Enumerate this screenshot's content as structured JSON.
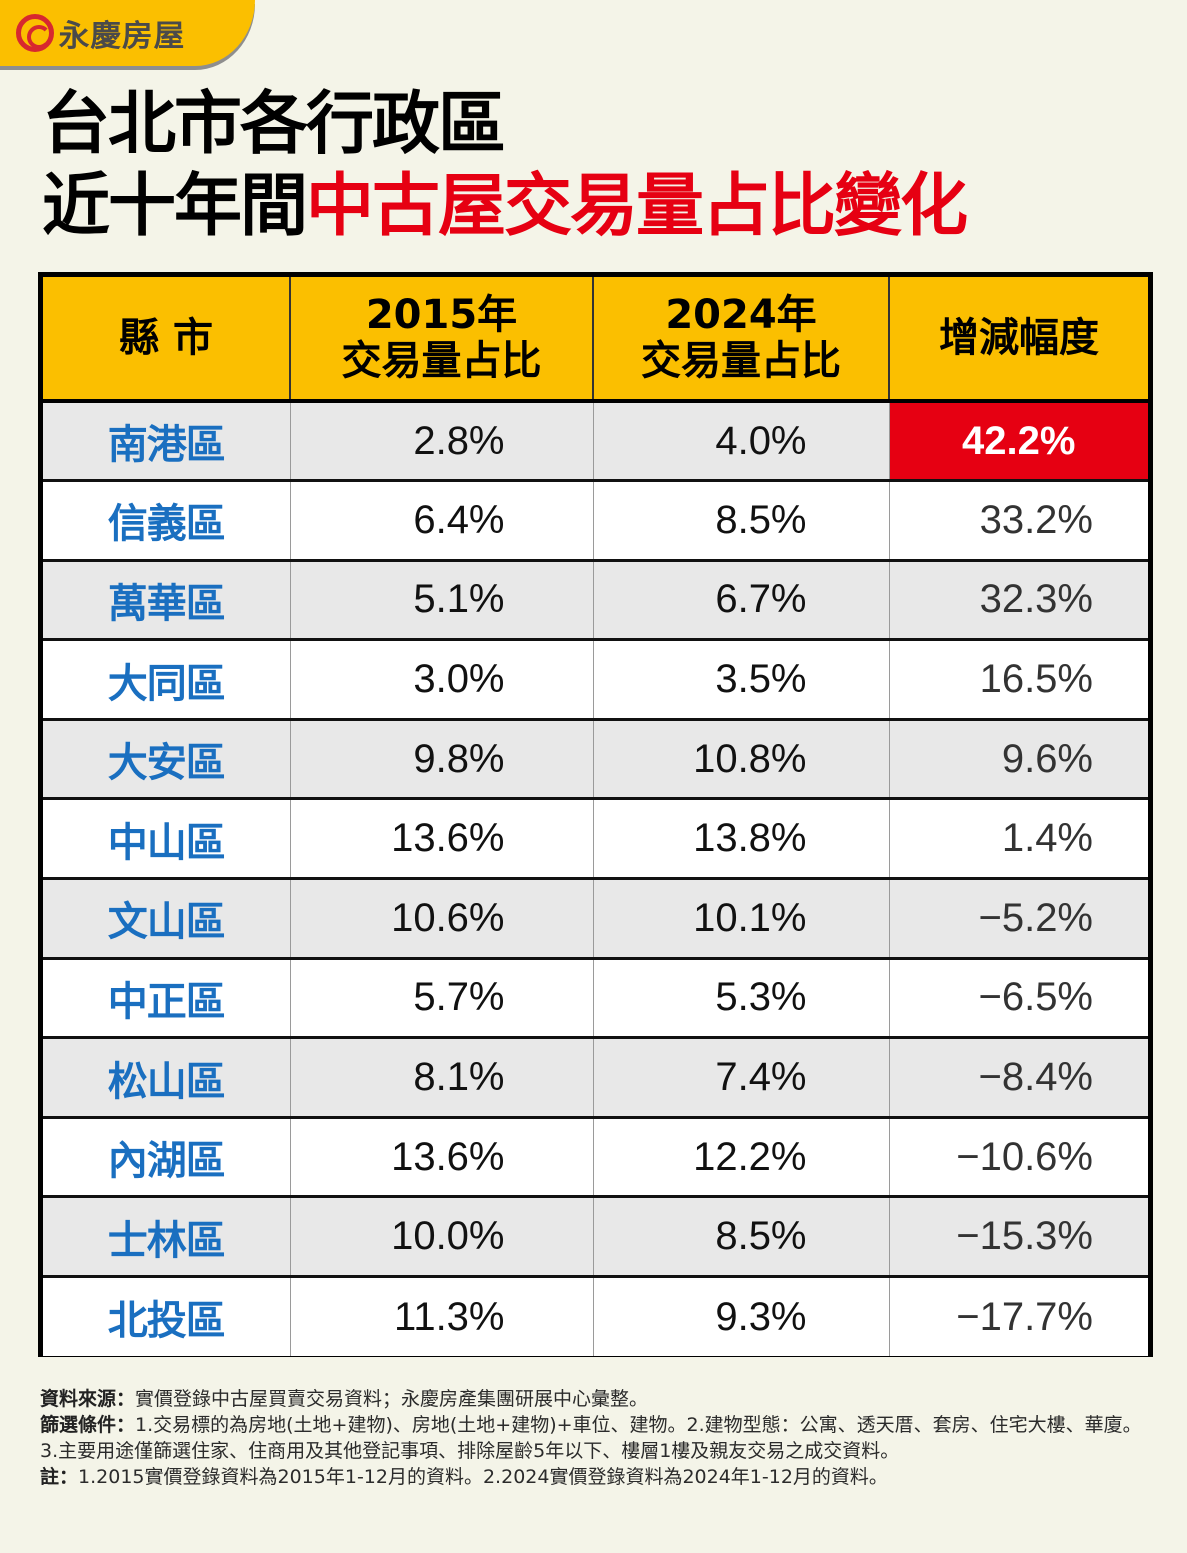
{
  "brand": {
    "name": "永慶房屋",
    "logo_icon": "yungching-swirl-icon",
    "accent": "#FBBF00",
    "logo_red": "#D7282F"
  },
  "title": {
    "line1": "台北市各行政區",
    "line2_prefix": "近十年間",
    "line2_highlight": "中古屋交易量占比變化",
    "highlight_color": "#E60012"
  },
  "table": {
    "headers": [
      {
        "line1": "縣 市",
        "line2": ""
      },
      {
        "line1": "2015年",
        "line2": "交易量占比"
      },
      {
        "line1": "2024年",
        "line2": "交易量占比"
      },
      {
        "line1": "增減幅度",
        "line2": ""
      }
    ],
    "rows": [
      {
        "district": "南港區",
        "y2015": "2.8%",
        "y2024": "4.0%",
        "change": "42.2%",
        "highlight": true
      },
      {
        "district": "信義區",
        "y2015": "6.4%",
        "y2024": "8.5%",
        "change": "33.2%"
      },
      {
        "district": "萬華區",
        "y2015": "5.1%",
        "y2024": "6.7%",
        "change": "32.3%"
      },
      {
        "district": "大同區",
        "y2015": "3.0%",
        "y2024": "3.5%",
        "change": "16.5%"
      },
      {
        "district": "大安區",
        "y2015": "9.8%",
        "y2024": "10.8%",
        "change": "9.6%"
      },
      {
        "district": "中山區",
        "y2015": "13.6%",
        "y2024": "13.8%",
        "change": "1.4%"
      },
      {
        "district": "文山區",
        "y2015": "10.6%",
        "y2024": "10.1%",
        "change": "−5.2%"
      },
      {
        "district": "中正區",
        "y2015": "5.7%",
        "y2024": "5.3%",
        "change": "−6.5%"
      },
      {
        "district": "松山區",
        "y2015": "8.1%",
        "y2024": "7.4%",
        "change": "−8.4%"
      },
      {
        "district": "內湖區",
        "y2015": "13.6%",
        "y2024": "12.2%",
        "change": "−10.6%"
      },
      {
        "district": "士林區",
        "y2015": "10.0%",
        "y2024": "8.5%",
        "change": "−15.3%"
      },
      {
        "district": "北投區",
        "y2015": "11.3%",
        "y2024": "9.3%",
        "change": "−17.7%"
      }
    ],
    "colors": {
      "header_bg": "#FBBF00",
      "district_text": "#1A6FC0",
      "highlight_bg": "#E60012",
      "row_alt": "#E8E8E8"
    }
  },
  "notes": {
    "source_label": "資料來源：",
    "source_text": "實價登錄中古屋買賣交易資料；永慶房產集團研展中心彙整。",
    "filter_label": "篩選條件：",
    "filter_text": "1.交易標的為房地(土地+建物)、房地(土地+建物)+車位、建物。2.建物型態：公寓、透天厝、套房、住宅大樓、華廈。3.主要用途僅篩選住家、住商用及其他登記事項、排除屋齡5年以下、樓層1樓及親友交易之成交資料。",
    "note_label": "註：",
    "note_text": "1.2015實價登錄資料為2015年1-12月的資料。2.2024實價登錄資料為2024年1-12月的資料。"
  }
}
